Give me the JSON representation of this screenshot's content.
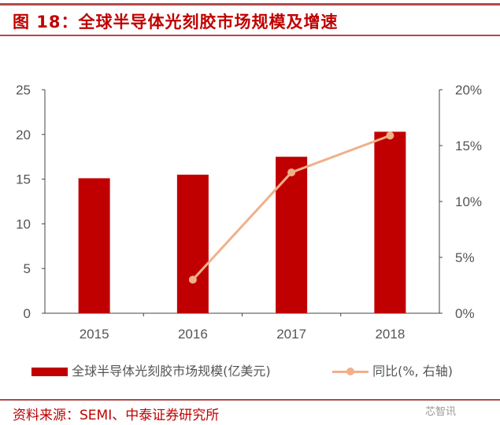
{
  "title": "图 18：全球半导体光刻胶市场规模及增速",
  "source": "资料来源：SEMI、中泰证券研究所",
  "watermark": "芯智讯",
  "chart_data": {
    "type": "bar+line",
    "categories": [
      "2015",
      "2016",
      "2017",
      "2018"
    ],
    "series": [
      {
        "name": "全球半导体光刻胶市场规模(亿美元)",
        "type": "bar",
        "axis": "left",
        "color": "#c00000",
        "values": [
          15.1,
          15.5,
          17.5,
          20.3
        ]
      },
      {
        "name": "同比(%, 右轴)",
        "type": "line",
        "axis": "right",
        "color": "#f0b08a",
        "values": [
          null,
          3.0,
          12.6,
          15.9
        ]
      }
    ],
    "left_axis": {
      "ylim": [
        0,
        25
      ],
      "ticks": [
        "0",
        "5",
        "10",
        "15",
        "20",
        "25"
      ]
    },
    "right_axis": {
      "ylim": [
        0,
        20
      ],
      "ticks": [
        "0%",
        "5%",
        "10%",
        "15%",
        "20%"
      ]
    },
    "grid": false,
    "legend": "bottom"
  }
}
